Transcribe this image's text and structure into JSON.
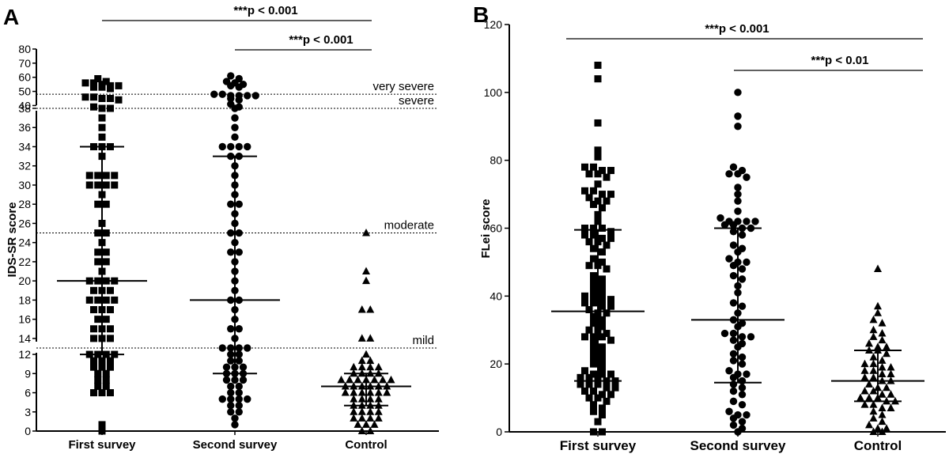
{
  "chart_data": [
    {
      "type": "scatter",
      "panel_label": "A",
      "ylabel": "IDS-SR score",
      "categories": [
        "First survey",
        "Second survey",
        "Control"
      ],
      "yticks_lower": [
        "0",
        "3",
        "6",
        "9",
        "12"
      ],
      "yticks_middle": [
        "14",
        "16",
        "18",
        "20",
        "22",
        "24",
        "26",
        "28",
        "30",
        "32",
        "34",
        "36",
        "38"
      ],
      "yticks_upper": [
        "40",
        "50",
        "60",
        "70",
        "80"
      ],
      "thresholds": [
        {
          "label": "very severe",
          "value": 48
        },
        {
          "label": "severe",
          "value": 38
        },
        {
          "label": "moderate",
          "value": 25
        },
        {
          "label": "mild",
          "value": 13
        }
      ],
      "significance": [
        {
          "label": "***p < 0.001",
          "from": 0,
          "to": 2
        },
        {
          "label": "***p < 0.001",
          "from": 1,
          "to": 2
        }
      ],
      "series": [
        {
          "marker": "square",
          "values": [
            59,
            57,
            56,
            56,
            55,
            54,
            54,
            53,
            53,
            52,
            46,
            46,
            45,
            45,
            44,
            39,
            38,
            38,
            37,
            36,
            35,
            34,
            34,
            34,
            33,
            31,
            31,
            31,
            31,
            30,
            30,
            30,
            30,
            29,
            28,
            28,
            26,
            25,
            25,
            24,
            23,
            23,
            22,
            22,
            21,
            20,
            20,
            20,
            20,
            19,
            19,
            19,
            18,
            18,
            18,
            18,
            17,
            17,
            17,
            16,
            16,
            15,
            15,
            15,
            14,
            14,
            14,
            12,
            12,
            12,
            12,
            11,
            11,
            11,
            10,
            10,
            10,
            9,
            9,
            8,
            8,
            7,
            7,
            6,
            6,
            6,
            1,
            0
          ],
          "median": 20,
          "q1": 12,
          "q3": 34
        },
        {
          "marker": "circle",
          "values": [
            61,
            59,
            57,
            56,
            55,
            54,
            53,
            48,
            48,
            47,
            47,
            47,
            47,
            45,
            44,
            41,
            39,
            38,
            37,
            36,
            35,
            34,
            34,
            34,
            34,
            33,
            33,
            32,
            31,
            30,
            29,
            28,
            28,
            27,
            26,
            25,
            25,
            24,
            23,
            23,
            22,
            21,
            20,
            19,
            18,
            18,
            17,
            16,
            15,
            15,
            14,
            13,
            13,
            13,
            13,
            12,
            12,
            11,
            11,
            10,
            10,
            10,
            9,
            9,
            9,
            8,
            8,
            8,
            7,
            7,
            6,
            6,
            5,
            5,
            5,
            5,
            4,
            4,
            3,
            3,
            2,
            1
          ],
          "median": 18,
          "q1": 9,
          "q3": 33
        },
        {
          "marker": "triangle",
          "values": [
            25,
            21,
            20,
            17,
            17,
            14,
            14,
            12,
            11,
            11,
            10,
            10,
            10,
            10,
            9,
            9,
            9,
            9,
            8,
            8,
            8,
            8,
            8,
            8,
            8,
            7,
            7,
            7,
            7,
            7,
            7,
            6,
            6,
            6,
            6,
            6,
            6,
            5,
            5,
            5,
            5,
            4,
            4,
            4,
            4,
            3,
            3,
            3,
            3,
            2,
            2,
            2,
            2,
            1,
            1,
            1,
            0,
            0
          ],
          "median": 7,
          "q1": 4,
          "q3": 9
        }
      ]
    },
    {
      "type": "scatter",
      "panel_label": "B",
      "ylabel": "FLei score",
      "categories": [
        "First survey",
        "Second survey",
        "Control"
      ],
      "ylim": [
        0,
        120
      ],
      "yticks": [
        "0",
        "20",
        "40",
        "60",
        "80",
        "100",
        "120"
      ],
      "significance": [
        {
          "label": "***p < 0.001",
          "from": 0,
          "to": 2
        },
        {
          "label": "***p < 0.01",
          "from": 1,
          "to": 2
        }
      ],
      "series": [
        {
          "marker": "square",
          "values": [
            108,
            104,
            91,
            83,
            81,
            78,
            78,
            77,
            77,
            76,
            76,
            75,
            73,
            71,
            71,
            70,
            70,
            69,
            68,
            68,
            67,
            66,
            64,
            62,
            60,
            60,
            60,
            59,
            58,
            58,
            57,
            57,
            56,
            56,
            55,
            54,
            53,
            51,
            50,
            49,
            49,
            48,
            46,
            45,
            44,
            43,
            42,
            41,
            40,
            40,
            39,
            39,
            38,
            38,
            37,
            37,
            36,
            35,
            35,
            34,
            33,
            32,
            31,
            30,
            30,
            29,
            28,
            28,
            28,
            27,
            26,
            25,
            24,
            23,
            22,
            21,
            20,
            19,
            18,
            17,
            17,
            17,
            16,
            16,
            15,
            15,
            15,
            14,
            14,
            14,
            13,
            13,
            12,
            12,
            11,
            11,
            10,
            10,
            9,
            8,
            7,
            6,
            5,
            3,
            0,
            0
          ],
          "median": 35.5,
          "q1": 15,
          "q3": 59.5
        },
        {
          "marker": "circle",
          "values": [
            100,
            93,
            90,
            78,
            77,
            76,
            76,
            75,
            72,
            70,
            68,
            65,
            63,
            62,
            62,
            62,
            62,
            61,
            61,
            60,
            60,
            59,
            58,
            55,
            54,
            53,
            51,
            50,
            50,
            49,
            48,
            46,
            45,
            43,
            41,
            38,
            37,
            35,
            33,
            32,
            31,
            29,
            29,
            28,
            28,
            27,
            26,
            25,
            23,
            22,
            21,
            20,
            18,
            17,
            17,
            16,
            15,
            14,
            13,
            12,
            11,
            9,
            8,
            6,
            5,
            5,
            4,
            3,
            2,
            1,
            0
          ],
          "median": 33,
          "q1": 14.5,
          "q3": 60
        },
        {
          "marker": "triangle",
          "values": [
            48,
            37,
            35,
            33,
            32,
            30,
            29,
            28,
            27,
            26,
            25,
            25,
            24,
            24,
            23,
            22,
            21,
            20,
            20,
            19,
            19,
            18,
            18,
            17,
            17,
            16,
            16,
            15,
            15,
            14,
            13,
            13,
            12,
            12,
            11,
            11,
            10,
            10,
            10,
            9,
            9,
            8,
            8,
            7,
            7,
            6,
            5,
            4,
            3,
            2,
            1,
            1,
            0,
            0
          ],
          "median": 15,
          "q1": 9,
          "q3": 24
        }
      ]
    }
  ]
}
